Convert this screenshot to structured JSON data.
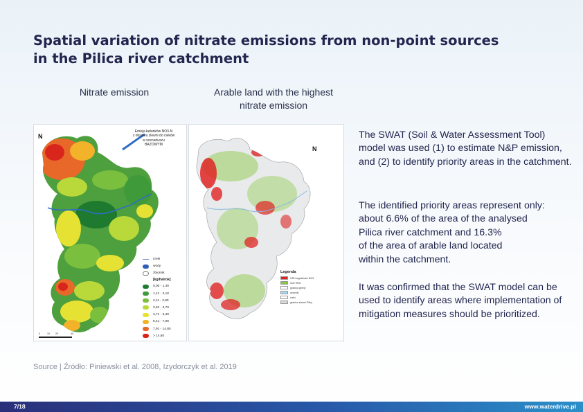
{
  "slide": {
    "title_line1": "Spatial variation of nitrate emissions from non-point sources",
    "title_line2": "in the Pilica river catchment",
    "caption_left": "Nitrate emission",
    "caption_right_line1": "Arable land with the highest",
    "caption_right_line2": "nitrate emission",
    "paragraph1": "The SWAT (Soil & Water Assessment Tool) model was used (1) to estimate N&P emission, and (2) to identify priority areas in the catchment.",
    "paragraph2_line1": "The identified priority areas represent only:",
    "paragraph2_line2": "about 6.6% of the area of the analysed",
    "paragraph2_line3": "Pilica river catchment and 16.3%",
    "paragraph2_line4": "of the area of arable land located",
    "paragraph2_line5": "within the catchment.",
    "paragraph3": "It was confirmed that the SWAT model can be used to identify areas where implementation of mitigation measures should be prioritized.",
    "source": "Source | Źródło: Piniewski et al. 2008, Izydorczyk et al. 2019"
  },
  "map_left": {
    "title_line1": "Emisja ładunków NO3-N",
    "title_line2": "z obszaru zlewni do cieków",
    "title_line3": "w scenariuszu",
    "title_line4": "BAZOWYM",
    "north": "N",
    "legend": {
      "item_rivers": "rzeki",
      "item_water": "wody",
      "item_reservoir": "zbiornik",
      "unit": "[kg/ha/rok]",
      "classes": [
        {
          "label": "0,00 - 1,40",
          "color": "#1e7a2e"
        },
        {
          "label": "1,41 - 2,10",
          "color": "#3f9a3a"
        },
        {
          "label": "2,11 - 2,80",
          "color": "#7bbf3f"
        },
        {
          "label": "2,81 - 3,70",
          "color": "#b9d83a"
        },
        {
          "label": "3,71 - 5,40",
          "color": "#e6e233"
        },
        {
          "label": "5,41 - 7,90",
          "color": "#f2b32a"
        },
        {
          "label": "7,91 - 14,80",
          "color": "#e8682a"
        },
        {
          "label": "> 14,80",
          "color": "#d9261c"
        }
      ]
    },
    "scale": [
      "0",
      "10",
      "20",
      "40"
    ]
  },
  "map_right": {
    "north": "N",
    "legend": {
      "title": "Legenda",
      "items": [
        {
          "label": "HRU wypadowe NO3",
          "color": "#e02424"
        },
        {
          "label": "inne HRU",
          "color": "#8cc63f"
        },
        {
          "label": "granica gminy",
          "color": "#ffffff"
        },
        {
          "label": "zbiornik",
          "color": "#a8d8f0"
        },
        {
          "label": "rzeki",
          "color": "#ffffff"
        },
        {
          "label": "granica zlewni Pilicy",
          "color": "#d8d8d8"
        }
      ]
    }
  },
  "footer": {
    "page": "7/18",
    "url": "www.waterdrive.pl"
  },
  "colors": {
    "title": "#22264f",
    "footer_start": "#2a2f7a",
    "footer_end": "#2a8fc9"
  }
}
